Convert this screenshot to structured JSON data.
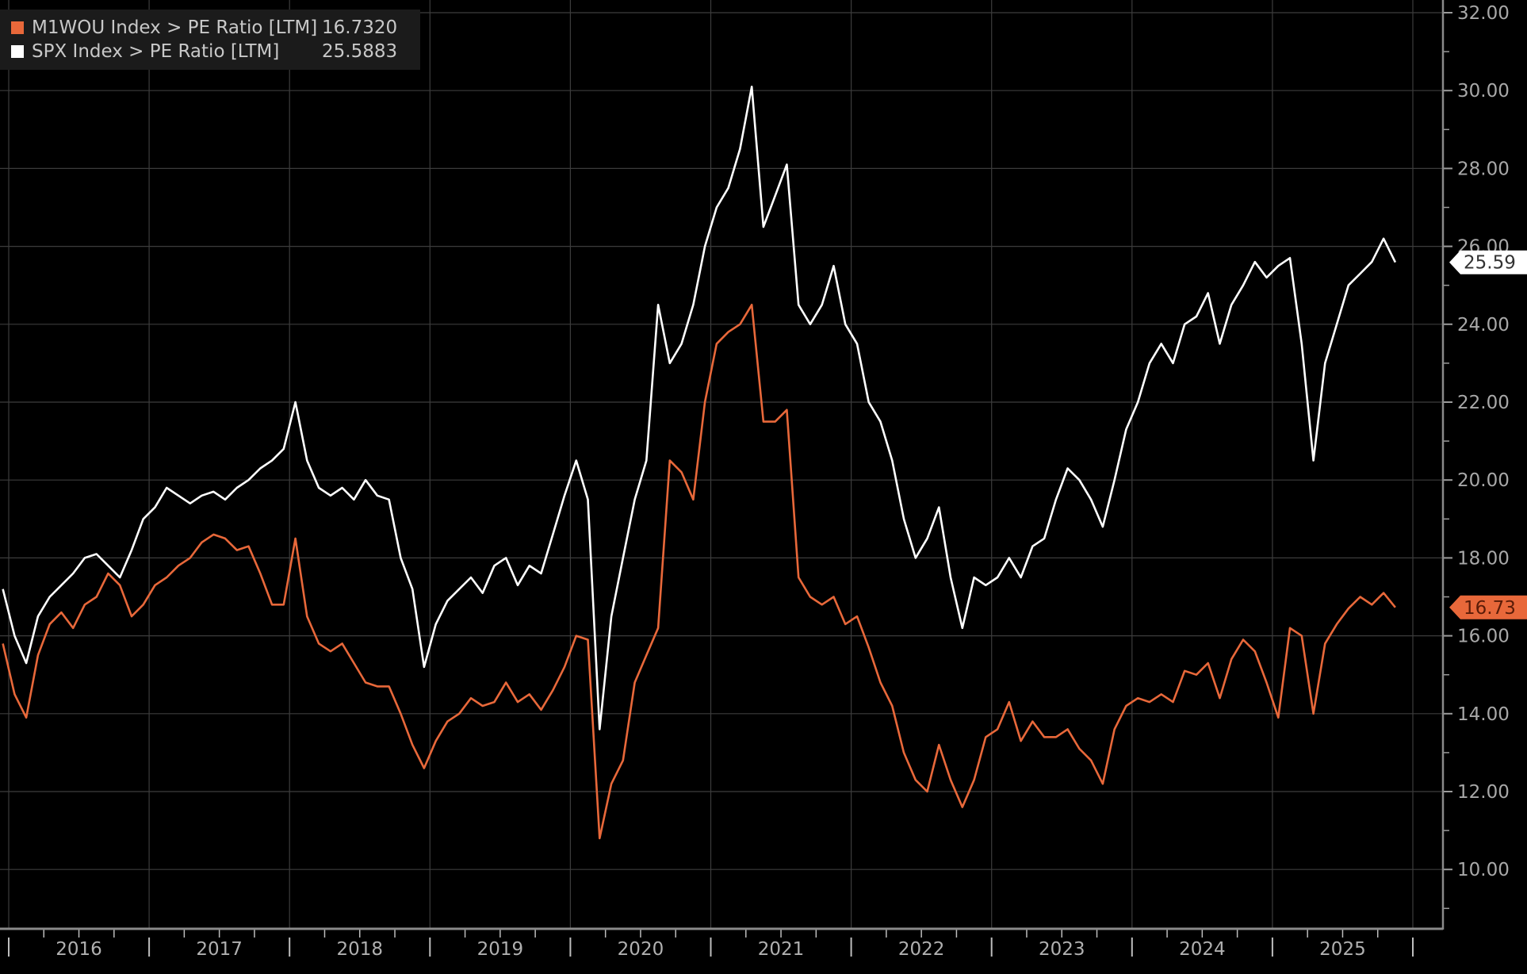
{
  "chart_data": {
    "type": "line",
    "title": "",
    "xlabel": "",
    "ylabel": "",
    "ylim": [
      8.5,
      32.5
    ],
    "y_ticks": [
      "10.00",
      "12.00",
      "14.00",
      "16.00",
      "18.00",
      "20.00",
      "22.00",
      "24.00",
      "26.00",
      "28.00",
      "30.00",
      "32.00"
    ],
    "x_ticks": [
      "2016",
      "2017",
      "2018",
      "2019",
      "2020",
      "2021",
      "2022",
      "2023",
      "2024",
      "2025"
    ],
    "grid": true,
    "y_axis_side": "right",
    "legend_placement": "top-left",
    "background": "#000000",
    "series": [
      {
        "name": "M1WOU Index > PE Ratio [LTM]",
        "legend_value": "16.7320",
        "last_label": "16.73",
        "color": "#e8683a",
        "points": [
          [
            "2015-12",
            15.8
          ],
          [
            "2016-01",
            14.5
          ],
          [
            "2016-02",
            13.9
          ],
          [
            "2016-03",
            15.5
          ],
          [
            "2016-04",
            16.3
          ],
          [
            "2016-05",
            16.6
          ],
          [
            "2016-06",
            16.2
          ],
          [
            "2016-07",
            16.8
          ],
          [
            "2016-08",
            17.0
          ],
          [
            "2016-09",
            17.6
          ],
          [
            "2016-10",
            17.3
          ],
          [
            "2016-11",
            16.5
          ],
          [
            "2016-12",
            16.8
          ],
          [
            "2017-01",
            17.3
          ],
          [
            "2017-02",
            17.5
          ],
          [
            "2017-03",
            17.8
          ],
          [
            "2017-04",
            18.0
          ],
          [
            "2017-05",
            18.4
          ],
          [
            "2017-06",
            18.6
          ],
          [
            "2017-07",
            18.5
          ],
          [
            "2017-08",
            18.2
          ],
          [
            "2017-09",
            18.3
          ],
          [
            "2017-10",
            17.6
          ],
          [
            "2017-11",
            16.8
          ],
          [
            "2017-12",
            16.8
          ],
          [
            "2018-01",
            18.5
          ],
          [
            "2018-02",
            16.5
          ],
          [
            "2018-03",
            15.8
          ],
          [
            "2018-04",
            15.6
          ],
          [
            "2018-05",
            15.8
          ],
          [
            "2018-06",
            15.3
          ],
          [
            "2018-07",
            14.8
          ],
          [
            "2018-08",
            14.7
          ],
          [
            "2018-09",
            14.7
          ],
          [
            "2018-10",
            14.0
          ],
          [
            "2018-11",
            13.2
          ],
          [
            "2018-12",
            12.6
          ],
          [
            "2019-01",
            13.3
          ],
          [
            "2019-02",
            13.8
          ],
          [
            "2019-03",
            14.0
          ],
          [
            "2019-04",
            14.4
          ],
          [
            "2019-05",
            14.2
          ],
          [
            "2019-06",
            14.3
          ],
          [
            "2019-07",
            14.8
          ],
          [
            "2019-08",
            14.3
          ],
          [
            "2019-09",
            14.5
          ],
          [
            "2019-10",
            14.1
          ],
          [
            "2019-11",
            14.6
          ],
          [
            "2019-12",
            15.2
          ],
          [
            "2020-01",
            16.0
          ],
          [
            "2020-02",
            15.9
          ],
          [
            "2020-03",
            10.8
          ],
          [
            "2020-04",
            12.2
          ],
          [
            "2020-05",
            12.8
          ],
          [
            "2020-06",
            14.8
          ],
          [
            "2020-07",
            15.5
          ],
          [
            "2020-08",
            16.2
          ],
          [
            "2020-09",
            20.5
          ],
          [
            "2020-10",
            20.2
          ],
          [
            "2020-11",
            19.5
          ],
          [
            "2020-12",
            22.0
          ],
          [
            "2021-01",
            23.5
          ],
          [
            "2021-02",
            23.8
          ],
          [
            "2021-03",
            24.0
          ],
          [
            "2021-04",
            24.5
          ],
          [
            "2021-05",
            21.5
          ],
          [
            "2021-06",
            21.5
          ],
          [
            "2021-07",
            21.8
          ],
          [
            "2021-08",
            17.5
          ],
          [
            "2021-09",
            17.0
          ],
          [
            "2021-10",
            16.8
          ],
          [
            "2021-11",
            17.0
          ],
          [
            "2021-12",
            16.3
          ],
          [
            "2022-01",
            16.5
          ],
          [
            "2022-02",
            15.7
          ],
          [
            "2022-03",
            14.8
          ],
          [
            "2022-04",
            14.2
          ],
          [
            "2022-05",
            13.0
          ],
          [
            "2022-06",
            12.3
          ],
          [
            "2022-07",
            12.0
          ],
          [
            "2022-08",
            13.2
          ],
          [
            "2022-09",
            12.3
          ],
          [
            "2022-10",
            11.6
          ],
          [
            "2022-11",
            12.3
          ],
          [
            "2022-12",
            13.4
          ],
          [
            "2023-01",
            13.6
          ],
          [
            "2023-02",
            14.3
          ],
          [
            "2023-03",
            13.3
          ],
          [
            "2023-04",
            13.8
          ],
          [
            "2023-05",
            13.4
          ],
          [
            "2023-06",
            13.4
          ],
          [
            "2023-07",
            13.6
          ],
          [
            "2023-08",
            13.1
          ],
          [
            "2023-09",
            12.8
          ],
          [
            "2023-10",
            12.2
          ],
          [
            "2023-11",
            13.6
          ],
          [
            "2023-12",
            14.2
          ],
          [
            "2024-01",
            14.4
          ],
          [
            "2024-02",
            14.3
          ],
          [
            "2024-03",
            14.5
          ],
          [
            "2024-04",
            14.3
          ],
          [
            "2024-05",
            15.1
          ],
          [
            "2024-06",
            15.0
          ],
          [
            "2024-07",
            15.3
          ],
          [
            "2024-08",
            14.4
          ],
          [
            "2024-09",
            15.4
          ],
          [
            "2024-10",
            15.9
          ],
          [
            "2024-11",
            15.6
          ],
          [
            "2024-12",
            14.8
          ],
          [
            "2025-01",
            13.9
          ],
          [
            "2025-02",
            16.2
          ],
          [
            "2025-03",
            16.0
          ],
          [
            "2025-04",
            14.0
          ],
          [
            "2025-05",
            15.8
          ],
          [
            "2025-06",
            16.3
          ],
          [
            "2025-07",
            16.7
          ],
          [
            "2025-08",
            17.0
          ],
          [
            "2025-09",
            16.8
          ],
          [
            "2025-10",
            17.1
          ],
          [
            "2025-11",
            16.73
          ]
        ]
      },
      {
        "name": "SPX Index > PE Ratio [LTM]",
        "legend_value": "25.5883",
        "last_label": "25.59",
        "color": "#ffffff",
        "points": [
          [
            "2015-12",
            17.2
          ],
          [
            "2016-01",
            16.0
          ],
          [
            "2016-02",
            15.3
          ],
          [
            "2016-03",
            16.5
          ],
          [
            "2016-04",
            17.0
          ],
          [
            "2016-05",
            17.3
          ],
          [
            "2016-06",
            17.6
          ],
          [
            "2016-07",
            18.0
          ],
          [
            "2016-08",
            18.1
          ],
          [
            "2016-09",
            17.8
          ],
          [
            "2016-10",
            17.5
          ],
          [
            "2016-11",
            18.2
          ],
          [
            "2016-12",
            19.0
          ],
          [
            "2017-01",
            19.3
          ],
          [
            "2017-02",
            19.8
          ],
          [
            "2017-03",
            19.6
          ],
          [
            "2017-04",
            19.4
          ],
          [
            "2017-05",
            19.6
          ],
          [
            "2017-06",
            19.7
          ],
          [
            "2017-07",
            19.5
          ],
          [
            "2017-08",
            19.8
          ],
          [
            "2017-09",
            20.0
          ],
          [
            "2017-10",
            20.3
          ],
          [
            "2017-11",
            20.5
          ],
          [
            "2017-12",
            20.8
          ],
          [
            "2018-01",
            22.0
          ],
          [
            "2018-02",
            20.5
          ],
          [
            "2018-03",
            19.8
          ],
          [
            "2018-04",
            19.6
          ],
          [
            "2018-05",
            19.8
          ],
          [
            "2018-06",
            19.5
          ],
          [
            "2018-07",
            20.0
          ],
          [
            "2018-08",
            19.6
          ],
          [
            "2018-09",
            19.5
          ],
          [
            "2018-10",
            18.0
          ],
          [
            "2018-11",
            17.2
          ],
          [
            "2018-12",
            15.2
          ],
          [
            "2019-01",
            16.3
          ],
          [
            "2019-02",
            16.9
          ],
          [
            "2019-03",
            17.2
          ],
          [
            "2019-04",
            17.5
          ],
          [
            "2019-05",
            17.1
          ],
          [
            "2019-06",
            17.8
          ],
          [
            "2019-07",
            18.0
          ],
          [
            "2019-08",
            17.3
          ],
          [
            "2019-09",
            17.8
          ],
          [
            "2019-10",
            17.6
          ],
          [
            "2019-11",
            18.6
          ],
          [
            "2019-12",
            19.6
          ],
          [
            "2020-01",
            20.5
          ],
          [
            "2020-02",
            19.5
          ],
          [
            "2020-03",
            13.6
          ],
          [
            "2020-04",
            16.5
          ],
          [
            "2020-05",
            18.0
          ],
          [
            "2020-06",
            19.5
          ],
          [
            "2020-07",
            20.5
          ],
          [
            "2020-08",
            24.5
          ],
          [
            "2020-09",
            23.0
          ],
          [
            "2020-10",
            23.5
          ],
          [
            "2020-11",
            24.5
          ],
          [
            "2020-12",
            26.0
          ],
          [
            "2021-01",
            27.0
          ],
          [
            "2021-02",
            27.5
          ],
          [
            "2021-03",
            28.5
          ],
          [
            "2021-04",
            30.1
          ],
          [
            "2021-05",
            26.5
          ],
          [
            "2021-06",
            27.3
          ],
          [
            "2021-07",
            28.1
          ],
          [
            "2021-08",
            24.5
          ],
          [
            "2021-09",
            24.0
          ],
          [
            "2021-10",
            24.5
          ],
          [
            "2021-11",
            25.5
          ],
          [
            "2021-12",
            24.0
          ],
          [
            "2022-01",
            23.5
          ],
          [
            "2022-02",
            22.0
          ],
          [
            "2022-03",
            21.5
          ],
          [
            "2022-04",
            20.5
          ],
          [
            "2022-05",
            19.0
          ],
          [
            "2022-06",
            18.0
          ],
          [
            "2022-07",
            18.5
          ],
          [
            "2022-08",
            19.3
          ],
          [
            "2022-09",
            17.5
          ],
          [
            "2022-10",
            16.2
          ],
          [
            "2022-11",
            17.5
          ],
          [
            "2022-12",
            17.3
          ],
          [
            "2023-01",
            17.5
          ],
          [
            "2023-02",
            18.0
          ],
          [
            "2023-03",
            17.5
          ],
          [
            "2023-04",
            18.3
          ],
          [
            "2023-05",
            18.5
          ],
          [
            "2023-06",
            19.5
          ],
          [
            "2023-07",
            20.3
          ],
          [
            "2023-08",
            20.0
          ],
          [
            "2023-09",
            19.5
          ],
          [
            "2023-10",
            18.8
          ],
          [
            "2023-11",
            20.0
          ],
          [
            "2023-12",
            21.3
          ],
          [
            "2024-01",
            22.0
          ],
          [
            "2024-02",
            23.0
          ],
          [
            "2024-03",
            23.5
          ],
          [
            "2024-04",
            23.0
          ],
          [
            "2024-05",
            24.0
          ],
          [
            "2024-06",
            24.2
          ],
          [
            "2024-07",
            24.8
          ],
          [
            "2024-08",
            23.5
          ],
          [
            "2024-09",
            24.5
          ],
          [
            "2024-10",
            25.0
          ],
          [
            "2024-11",
            25.6
          ],
          [
            "2024-12",
            25.2
          ],
          [
            "2025-01",
            25.5
          ],
          [
            "2025-02",
            25.7
          ],
          [
            "2025-03",
            23.5
          ],
          [
            "2025-04",
            20.5
          ],
          [
            "2025-05",
            23.0
          ],
          [
            "2025-06",
            24.0
          ],
          [
            "2025-07",
            25.0
          ],
          [
            "2025-08",
            25.3
          ],
          [
            "2025-09",
            25.6
          ],
          [
            "2025-10",
            26.2
          ],
          [
            "2025-11",
            25.59
          ]
        ]
      }
    ]
  }
}
